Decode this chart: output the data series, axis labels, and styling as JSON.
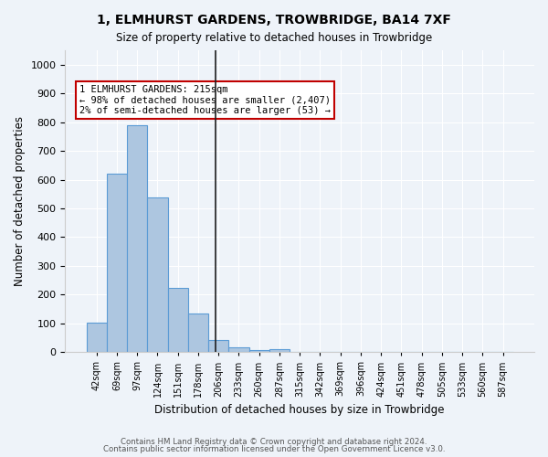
{
  "title": "1, ELMHURST GARDENS, TROWBRIDGE, BA14 7XF",
  "subtitle": "Size of property relative to detached houses in Trowbridge",
  "xlabel": "Distribution of detached houses by size in Trowbridge",
  "ylabel": "Number of detached properties",
  "bar_values": [
    103,
    622,
    789,
    538,
    222,
    133,
    42,
    16,
    7,
    11,
    0,
    0,
    0,
    0,
    0,
    0,
    0,
    0,
    0,
    0,
    0
  ],
  "bin_labels": [
    "42sqm",
    "69sqm",
    "97sqm",
    "124sqm",
    "151sqm",
    "178sqm",
    "206sqm",
    "233sqm",
    "260sqm",
    "287sqm",
    "315sqm",
    "342sqm",
    "369sqm",
    "396sqm",
    "424sqm",
    "451sqm",
    "478sqm",
    "505sqm",
    "533sqm",
    "560sqm",
    "587sqm"
  ],
  "bar_color": "#adc6e0",
  "bar_edge_color": "#5b9bd5",
  "vline_x": 5.85,
  "vline_color": "#1f1f1f",
  "annotation_text": "1 ELMHURST GARDENS: 215sqm\n← 98% of detached houses are smaller (2,407)\n2% of semi-detached houses are larger (53) →",
  "annotation_box_color": "#ffffff",
  "annotation_box_edge_color": "#c00000",
  "ylim": [
    0,
    1050
  ],
  "yticks": [
    0,
    100,
    200,
    300,
    400,
    500,
    600,
    700,
    800,
    900,
    1000
  ],
  "footer_line1": "Contains HM Land Registry data © Crown copyright and database right 2024.",
  "footer_line2": "Contains public sector information licensed under the Open Government Licence v3.0.",
  "bg_color": "#eef3f9",
  "plot_bg_color": "#eef3f9"
}
